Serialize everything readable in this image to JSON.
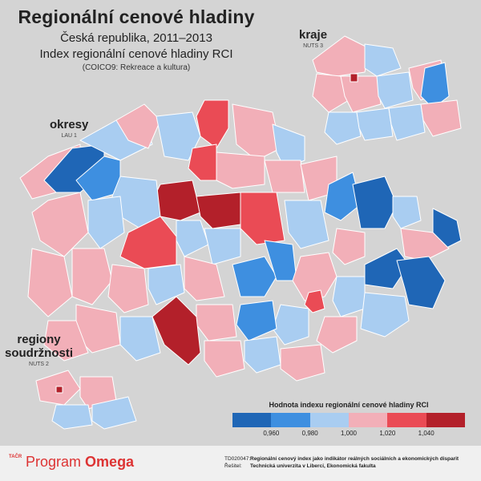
{
  "title": "Regionální cenové hladiny",
  "subtitle": "Česká republika, 2011–2013",
  "index_title": "Index regionální cenové hladiny RCI",
  "category": "(COICO9: Rekreace a kultura)",
  "labels": {
    "okresy": "okresy",
    "okresy_sub": "LAU 1",
    "kraje": "kraje",
    "kraje_sub": "NUTS 3",
    "regiony1": "regiony",
    "regiony2": "soudržnosti",
    "regiony_sub": "NUTS 2"
  },
  "legend": {
    "title": "Hodnota indexu regionální cenové hladiny RCI",
    "colors": [
      "#1f66b6",
      "#3e8fe0",
      "#a9cdf1",
      "#f2afb8",
      "#ea4b55",
      "#b3202a"
    ],
    "ticks": [
      "0,960",
      "0,980",
      "1,000",
      "1,020",
      "1,040"
    ]
  },
  "palette": {
    "dark_blue": "#1f66b6",
    "mid_blue": "#3e8fe0",
    "light_blue": "#a9cdf1",
    "light_red": "#f2afb8",
    "mid_red": "#ea4b55",
    "dark_red": "#b3202a",
    "border": "#ffffff",
    "background": "#d4d4d4"
  },
  "footer": {
    "logo_mark": "TAČR",
    "logo_program": "Program",
    "logo_name": "Omega",
    "project_label": "TD020047:",
    "project_value": "Regionální cenový index jako indikátor reálných sociálních a ekonomických disparit",
    "solver_label": "Řešitel:",
    "solver_value": "Technická univerzita v Liberci, Ekonomická fakulta"
  }
}
